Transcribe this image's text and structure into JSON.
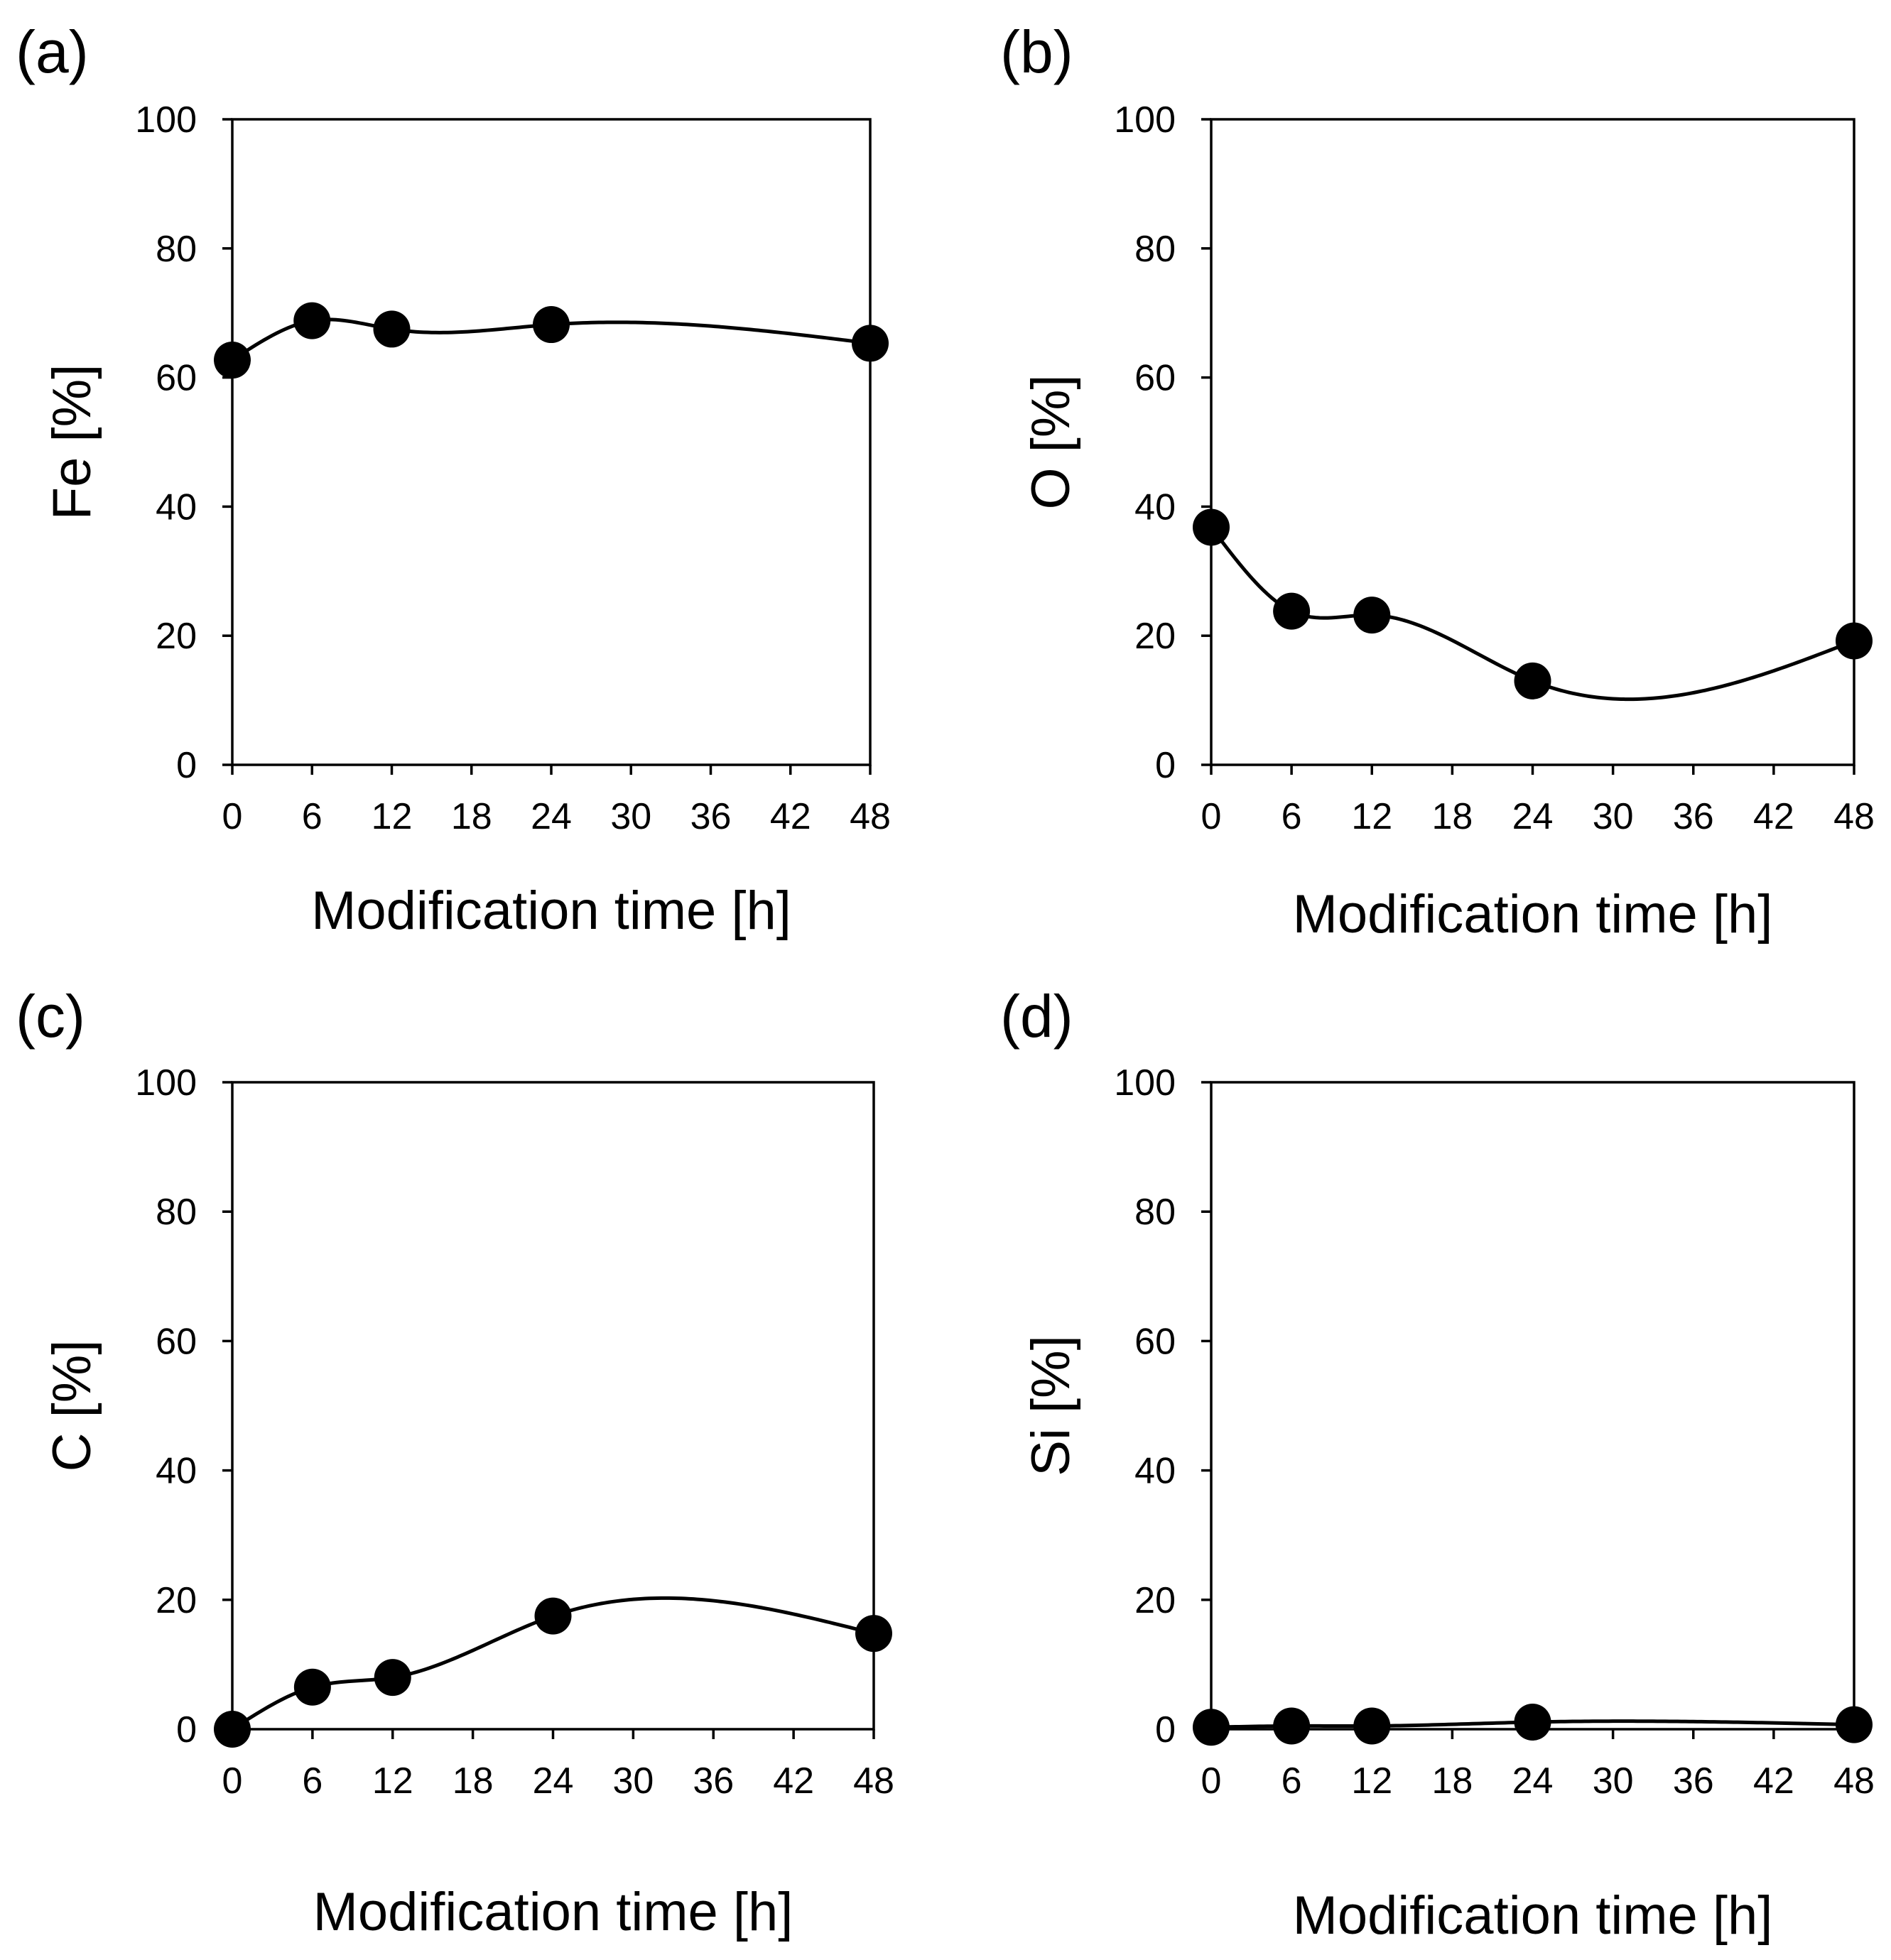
{
  "chart_data": [
    {
      "type": "line",
      "panel_label": "(a)",
      "xlabel": "Modification time [h]",
      "ylabel": "Fe [%]",
      "xlim": [
        0,
        48
      ],
      "ylim": [
        0,
        100
      ],
      "xticks": [
        0,
        6,
        12,
        18,
        24,
        30,
        36,
        42,
        48
      ],
      "yticks": [
        0,
        20,
        40,
        60,
        80,
        100
      ],
      "grid": false,
      "series": [
        {
          "name": "Fe",
          "x": [
            0,
            6,
            12,
            24,
            48
          ],
          "y": [
            62.7,
            68.8,
            67.5,
            68.2,
            65.3
          ]
        }
      ]
    },
    {
      "type": "line",
      "panel_label": "(b)",
      "xlabel": "Modification time [h]",
      "ylabel": "O [%]",
      "xlim": [
        0,
        48
      ],
      "ylim": [
        0,
        100
      ],
      "xticks": [
        0,
        6,
        12,
        18,
        24,
        30,
        36,
        42,
        48
      ],
      "yticks": [
        0,
        20,
        40,
        60,
        80,
        100
      ],
      "grid": false,
      "series": [
        {
          "name": "O",
          "x": [
            0,
            6,
            12,
            24,
            48
          ],
          "y": [
            36.8,
            23.8,
            23.2,
            13.0,
            19.2
          ]
        }
      ]
    },
    {
      "type": "line",
      "panel_label": "(c)",
      "xlabel": "Modification time [h]",
      "ylabel": "C [%]",
      "xlim": [
        0,
        48
      ],
      "ylim": [
        0,
        100
      ],
      "xticks": [
        0,
        6,
        12,
        18,
        24,
        30,
        36,
        42,
        48
      ],
      "yticks": [
        0,
        20,
        40,
        60,
        80,
        100
      ],
      "grid": false,
      "series": [
        {
          "name": "C",
          "x": [
            0,
            6,
            12,
            24,
            48
          ],
          "y": [
            0.0,
            6.5,
            8.0,
            17.5,
            14.8
          ]
        }
      ]
    },
    {
      "type": "line",
      "panel_label": "(d)",
      "xlabel": "Modification time [h]",
      "ylabel": "Si [%]",
      "xlim": [
        0,
        48
      ],
      "ylim": [
        0,
        100
      ],
      "xticks": [
        0,
        6,
        12,
        18,
        24,
        30,
        36,
        42,
        48
      ],
      "yticks": [
        0,
        20,
        40,
        60,
        80,
        100
      ],
      "grid": false,
      "series": [
        {
          "name": "Si",
          "x": [
            0,
            6,
            12,
            24,
            48
          ],
          "y": [
            0.3,
            0.5,
            0.5,
            1.1,
            0.7
          ]
        }
      ]
    }
  ]
}
